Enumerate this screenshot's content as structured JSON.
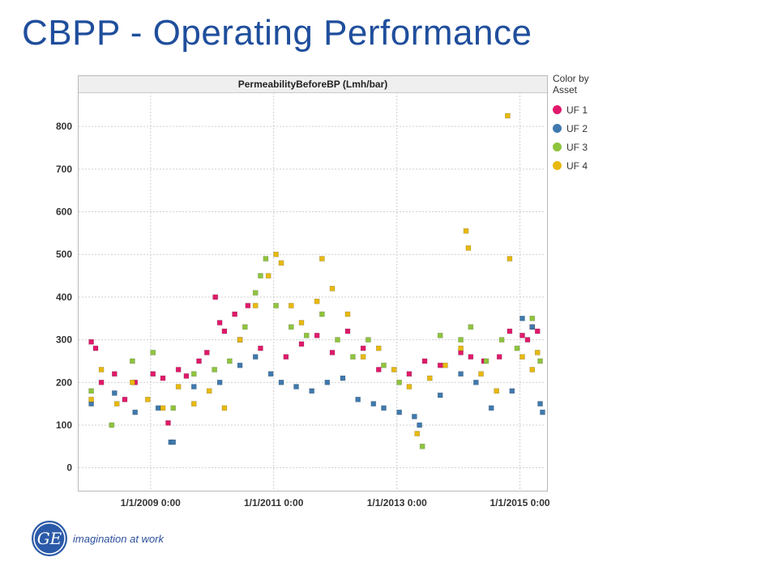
{
  "slide": {
    "title": "CBPP - Operating Performance"
  },
  "footer": {
    "tagline": "imagination at work",
    "logo_text": "GE"
  },
  "chart_data": {
    "type": "scatter",
    "title": "PermeabilityBeforeBP (Lmh/bar)",
    "xlabel": "",
    "ylabel": "",
    "x_type": "date",
    "xlim": [
      "2007-11-01",
      "2015-06-01"
    ],
    "ylim": [
      -50,
      880
    ],
    "yticks": [
      0,
      100,
      200,
      300,
      400,
      500,
      600,
      700,
      800
    ],
    "xticks": [
      {
        "value": "2009-01-01",
        "label": "1/1/2009 0:00"
      },
      {
        "value": "2011-01-01",
        "label": "1/1/2011 0:00"
      },
      {
        "value": "2013-01-01",
        "label": "1/1/2013 0:00"
      },
      {
        "value": "2015-01-01",
        "label": "1/1/2015 0:00"
      }
    ],
    "grid": true,
    "legend": {
      "title": "Color by Asset",
      "position": "right"
    },
    "series": [
      {
        "name": "UF 1",
        "color": "#e0196a",
        "points": [
          [
            "2008-01-15",
            295
          ],
          [
            "2008-02-10",
            280
          ],
          [
            "2008-03-15",
            200
          ],
          [
            "2008-06-01",
            220
          ],
          [
            "2008-08-01",
            160
          ],
          [
            "2008-10-01",
            200
          ],
          [
            "2009-01-15",
            220
          ],
          [
            "2009-03-15",
            210
          ],
          [
            "2009-04-15",
            105
          ],
          [
            "2009-06-15",
            230
          ],
          [
            "2009-08-01",
            215
          ],
          [
            "2009-10-15",
            250
          ],
          [
            "2009-12-01",
            270
          ],
          [
            "2010-01-20",
            400
          ],
          [
            "2010-02-15",
            340
          ],
          [
            "2010-03-15",
            320
          ],
          [
            "2010-05-15",
            360
          ],
          [
            "2010-06-15",
            300
          ],
          [
            "2010-08-01",
            380
          ],
          [
            "2010-10-15",
            280
          ],
          [
            "2011-03-15",
            260
          ],
          [
            "2011-06-15",
            290
          ],
          [
            "2011-09-15",
            310
          ],
          [
            "2011-12-15",
            270
          ],
          [
            "2012-03-15",
            320
          ],
          [
            "2012-06-15",
            280
          ],
          [
            "2012-09-15",
            230
          ],
          [
            "2013-03-15",
            220
          ],
          [
            "2013-06-15",
            250
          ],
          [
            "2013-09-15",
            240
          ],
          [
            "2014-01-15",
            270
          ],
          [
            "2014-03-15",
            260
          ],
          [
            "2014-06-01",
            250
          ],
          [
            "2014-09-01",
            260
          ],
          [
            "2014-11-01",
            320
          ],
          [
            "2015-01-15",
            310
          ],
          [
            "2015-02-15",
            300
          ],
          [
            "2015-03-15",
            330
          ],
          [
            "2015-04-15",
            320
          ]
        ]
      },
      {
        "name": "UF 2",
        "color": "#3f79ae",
        "points": [
          [
            "2008-01-15",
            150
          ],
          [
            "2008-06-01",
            175
          ],
          [
            "2008-10-01",
            130
          ],
          [
            "2009-02-15",
            140
          ],
          [
            "2009-05-01",
            60
          ],
          [
            "2009-05-15",
            60
          ],
          [
            "2009-09-15",
            190
          ],
          [
            "2010-02-15",
            200
          ],
          [
            "2010-06-15",
            240
          ],
          [
            "2010-09-15",
            260
          ],
          [
            "2010-12-15",
            220
          ],
          [
            "2011-02-15",
            200
          ],
          [
            "2011-05-15",
            190
          ],
          [
            "2011-08-15",
            180
          ],
          [
            "2011-11-15",
            200
          ],
          [
            "2012-02-15",
            210
          ],
          [
            "2012-05-15",
            160
          ],
          [
            "2012-08-15",
            150
          ],
          [
            "2012-10-15",
            140
          ],
          [
            "2013-01-15",
            130
          ],
          [
            "2013-04-15",
            120
          ],
          [
            "2013-05-15",
            100
          ],
          [
            "2013-09-15",
            170
          ],
          [
            "2014-01-15",
            220
          ],
          [
            "2014-04-15",
            200
          ],
          [
            "2014-07-15",
            140
          ],
          [
            "2014-11-15",
            180
          ],
          [
            "2015-01-15",
            350
          ],
          [
            "2015-03-15",
            330
          ],
          [
            "2015-05-01",
            150
          ],
          [
            "2015-05-15",
            130
          ]
        ]
      },
      {
        "name": "UF 3",
        "color": "#8fc43d",
        "points": [
          [
            "2008-01-15",
            180
          ],
          [
            "2008-05-15",
            100
          ],
          [
            "2008-09-15",
            250
          ],
          [
            "2009-01-15",
            270
          ],
          [
            "2009-05-15",
            140
          ],
          [
            "2009-09-15",
            220
          ],
          [
            "2010-01-15",
            230
          ],
          [
            "2010-04-15",
            250
          ],
          [
            "2010-07-15",
            330
          ],
          [
            "2010-09-15",
            410
          ],
          [
            "2010-10-15",
            450
          ],
          [
            "2010-11-15",
            490
          ],
          [
            "2011-01-15",
            380
          ],
          [
            "2011-04-15",
            330
          ],
          [
            "2011-07-15",
            310
          ],
          [
            "2011-10-15",
            360
          ],
          [
            "2012-01-15",
            300
          ],
          [
            "2012-04-15",
            260
          ],
          [
            "2012-07-15",
            300
          ],
          [
            "2012-10-15",
            240
          ],
          [
            "2013-01-15",
            200
          ],
          [
            "2013-06-01",
            50
          ],
          [
            "2013-09-15",
            310
          ],
          [
            "2014-01-15",
            300
          ],
          [
            "2014-03-15",
            330
          ],
          [
            "2014-06-15",
            250
          ],
          [
            "2014-09-15",
            300
          ],
          [
            "2014-12-15",
            280
          ],
          [
            "2015-03-15",
            350
          ],
          [
            "2015-05-01",
            250
          ]
        ]
      },
      {
        "name": "UF 4",
        "color": "#e8b90e",
        "points": [
          [
            "2008-01-15",
            160
          ],
          [
            "2008-03-15",
            230
          ],
          [
            "2008-06-15",
            150
          ],
          [
            "2008-09-15",
            200
          ],
          [
            "2008-12-15",
            160
          ],
          [
            "2009-03-15",
            140
          ],
          [
            "2009-06-15",
            190
          ],
          [
            "2009-09-15",
            150
          ],
          [
            "2009-12-15",
            180
          ],
          [
            "2010-03-15",
            140
          ],
          [
            "2010-06-15",
            300
          ],
          [
            "2010-09-15",
            380
          ],
          [
            "2010-12-01",
            450
          ],
          [
            "2011-01-15",
            500
          ],
          [
            "2011-02-15",
            480
          ],
          [
            "2011-04-15",
            380
          ],
          [
            "2011-06-15",
            340
          ],
          [
            "2011-09-15",
            390
          ],
          [
            "2011-10-15",
            490
          ],
          [
            "2011-12-15",
            420
          ],
          [
            "2012-03-15",
            360
          ],
          [
            "2012-06-15",
            260
          ],
          [
            "2012-09-15",
            280
          ],
          [
            "2012-12-15",
            230
          ],
          [
            "2013-03-15",
            190
          ],
          [
            "2013-05-01",
            80
          ],
          [
            "2013-07-15",
            210
          ],
          [
            "2013-10-15",
            240
          ],
          [
            "2014-01-15",
            280
          ],
          [
            "2014-02-15",
            555
          ],
          [
            "2014-03-01",
            515
          ],
          [
            "2014-05-15",
            220
          ],
          [
            "2014-08-15",
            180
          ],
          [
            "2014-10-20",
            825
          ],
          [
            "2014-11-01",
            490
          ],
          [
            "2015-01-15",
            260
          ],
          [
            "2015-03-15",
            230
          ],
          [
            "2015-04-15",
            270
          ]
        ]
      }
    ]
  }
}
